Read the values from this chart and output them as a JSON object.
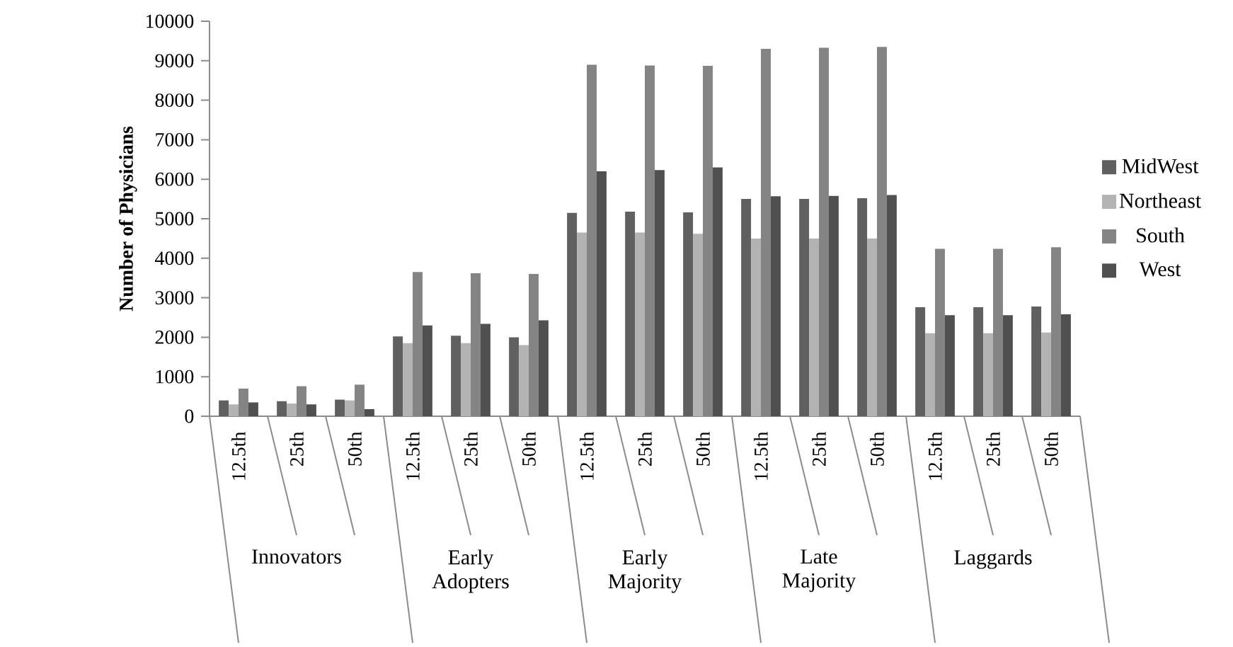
{
  "chart_data": {
    "type": "bar",
    "ylabel": "Number of Physicians",
    "categories": [
      "12.5th",
      "25th",
      "50th",
      "12.5th",
      "25th",
      "50th",
      "12.5th",
      "25th",
      "50th",
      "12.5th",
      "25th",
      "50th",
      "12.5th",
      "25th",
      "50th"
    ],
    "annotations": [
      "Innovators",
      "Early Adopters",
      "Early Majority",
      "Late Majority",
      "Laggards"
    ],
    "series": [
      {
        "name": "MidWest",
        "color": "#606060",
        "values": [
          400,
          380,
          420,
          2020,
          2040,
          2000,
          5150,
          5180,
          5160,
          5500,
          5500,
          5520,
          2760,
          2760,
          2780
        ]
      },
      {
        "name": "Northeast",
        "color": "#b3b3b3",
        "values": [
          300,
          320,
          400,
          1850,
          1850,
          1800,
          4650,
          4650,
          4620,
          4500,
          4500,
          4500,
          2100,
          2100,
          2120
        ]
      },
      {
        "name": "South",
        "color": "#848484",
        "values": [
          700,
          760,
          800,
          3650,
          3620,
          3600,
          8900,
          8880,
          8870,
          9300,
          9330,
          9350,
          4240,
          4240,
          4280
        ]
      },
      {
        "name": "West",
        "color": "#505050",
        "values": [
          350,
          300,
          180,
          2300,
          2340,
          2430,
          6200,
          6230,
          6300,
          5570,
          5580,
          5600,
          2560,
          2560,
          2580
        ]
      }
    ],
    "ylim": [
      0,
      10000
    ],
    "yticks": [
      0,
      1000,
      2000,
      3000,
      4000,
      5000,
      6000,
      7000,
      8000,
      9000,
      10000
    ],
    "grid": false,
    "legend": "right"
  }
}
